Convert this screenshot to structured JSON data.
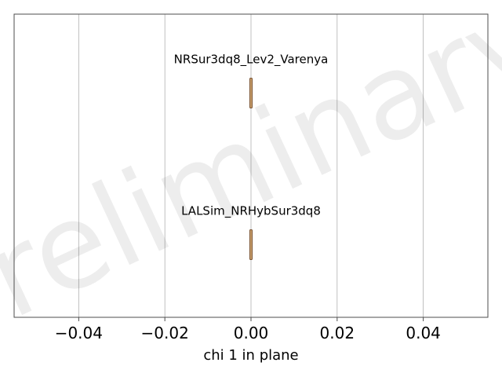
{
  "chart_data": {
    "type": "violin",
    "watermark": "Preliminary",
    "xlabel": "chi 1 in plane",
    "xlim": [
      -0.055,
      0.055
    ],
    "xticks": [
      -0.04,
      -0.02,
      0.0,
      0.02,
      0.04
    ],
    "xtick_labels": [
      "−0.04",
      "−0.02",
      "0.00",
      "0.02",
      "0.04"
    ],
    "grid": "vertical",
    "series": [
      {
        "name": "NRSur3dq8_Lev2_Varenya",
        "center": 0.0,
        "spread": 0.0002
      },
      {
        "name": "LALSim_NRHybSur3dq8",
        "center": 0.0,
        "spread": 0.0002
      }
    ],
    "colors": {
      "grid": "#b0b0b0",
      "frame": "#4d4d4d",
      "violin_fill": "#c9a06e",
      "violin_edge": "#7a5230",
      "watermark": "#000000"
    }
  }
}
